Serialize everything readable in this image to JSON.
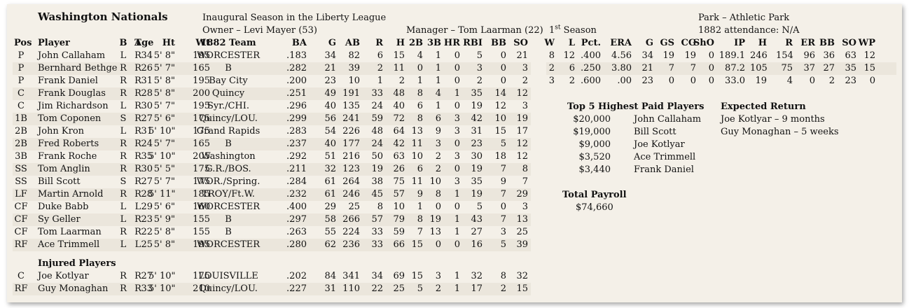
{
  "header": {
    "team": "Washington Nationals",
    "season": "Inaugural Season in the Liberty League",
    "owner": "Owner – Levi Mayer (53)",
    "manager": "Manager – Tom Laarman (22)",
    "manager_season_num": "1",
    "manager_season_sup": "st",
    "manager_season_rest": " Season",
    "park": "Park – Athletic Park",
    "attendance": "1882 attendance:  N/A"
  },
  "batting_columns": [
    "Pos",
    "Player",
    "B",
    "T",
    "Age",
    "Ht",
    "Wt",
    "1882 Team",
    "BA",
    "G",
    "AB",
    "R",
    "H",
    "2B",
    "3B",
    "HR",
    "RBI",
    "BB",
    "SO"
  ],
  "roster": [
    [
      "P",
      "John Callaham",
      "L",
      "R",
      "34",
      "5' 8\"",
      "195",
      "WORCESTER",
      ".183",
      "34",
      "82",
      "6",
      "15",
      "4",
      "1",
      "0",
      "5",
      "0",
      "21"
    ],
    [
      "P",
      "Bernhard Bethge",
      "R",
      "R",
      "26",
      "5' 7\"",
      "165",
      "B",
      ".282",
      "21",
      "39",
      "2",
      "11",
      "0",
      "1",
      "0",
      "3",
      "0",
      "3"
    ],
    [
      "P",
      "Frank Daniel",
      "R",
      "R",
      "31",
      "5' 8\"",
      "195",
      "Bay City",
      ".200",
      "23",
      "10",
      "1",
      "2",
      "1",
      "1",
      "0",
      "2",
      "0",
      "2"
    ],
    [
      "C",
      "Frank Douglas",
      "R",
      "R",
      "28",
      "5' 8\"",
      "200",
      "Quincy",
      ".251",
      "49",
      "191",
      "33",
      "48",
      "8",
      "4",
      "1",
      "35",
      "14",
      "12"
    ],
    [
      "C",
      "Jim Richardson",
      "L",
      "R",
      "30",
      "5' 7\"",
      "195",
      "Syr./CHI.",
      ".296",
      "40",
      "135",
      "24",
      "40",
      "6",
      "1",
      "0",
      "19",
      "12",
      "3"
    ],
    [
      "1B",
      "Tom Coponen",
      "S",
      "R",
      "27",
      "5' 6\"",
      "175",
      "Quincy/LOU.",
      ".299",
      "56",
      "241",
      "59",
      "72",
      "8",
      "6",
      "3",
      "42",
      "10",
      "19"
    ],
    [
      "2B",
      "John Kron",
      "L",
      "R",
      "31",
      "5' 10\"",
      "175",
      "Grand Rapids",
      ".283",
      "54",
      "226",
      "48",
      "64",
      "13",
      "9",
      "3",
      "31",
      "15",
      "17"
    ],
    [
      "2B",
      "Fred Roberts",
      "R",
      "R",
      "24",
      "5' 7\"",
      "165",
      "B",
      ".237",
      "40",
      "177",
      "24",
      "42",
      "11",
      "3",
      "0",
      "23",
      "5",
      "12"
    ],
    [
      "3B",
      "Frank Roche",
      "R",
      "R",
      "35",
      "5' 10\"",
      "205",
      "Washington",
      ".292",
      "51",
      "216",
      "50",
      "63",
      "10",
      "2",
      "3",
      "30",
      "18",
      "12"
    ],
    [
      "SS",
      "Tom Anglin",
      "R",
      "R",
      "30",
      "5' 5\"",
      "175",
      "G.R./BOS.",
      ".211",
      "32",
      "123",
      "19",
      "26",
      "6",
      "2",
      "0",
      "19",
      "7",
      "8"
    ],
    [
      "SS",
      "Bill Scott",
      "S",
      "R",
      "27",
      "5' 7\"",
      "175",
      "WOR./Spring.",
      ".284",
      "61",
      "264",
      "38",
      "75",
      "11",
      "10",
      "3",
      "35",
      "9",
      "7"
    ],
    [
      "LF",
      "Martin Arnold",
      "R",
      "R",
      "28",
      "5' 11\"",
      "185",
      "TROY/Ft.W.",
      ".232",
      "61",
      "246",
      "45",
      "57",
      "9",
      "8",
      "1",
      "19",
      "7",
      "29"
    ],
    [
      "CF",
      "Duke Babb",
      "L",
      "L",
      "29",
      "5' 6\"",
      "160",
      "WORCESTER",
      ".400",
      "29",
      "25",
      "8",
      "10",
      "1",
      "0",
      "0",
      "5",
      "0",
      "3"
    ],
    [
      "CF",
      "Sy Geller",
      "L",
      "R",
      "23",
      "5' 9\"",
      "155",
      "B",
      ".297",
      "58",
      "266",
      "57",
      "79",
      "8",
      "19",
      "1",
      "43",
      "7",
      "13"
    ],
    [
      "CF",
      "Tom Laarman",
      "R",
      "R",
      "22",
      "5' 8\"",
      "155",
      "B",
      ".263",
      "55",
      "224",
      "33",
      "59",
      "7",
      "13",
      "1",
      "27",
      "3",
      "25"
    ],
    [
      "RF",
      "Ace Trimmell",
      "L",
      "L",
      "25",
      "5' 8\"",
      "195",
      "WORCESTER",
      ".280",
      "62",
      "236",
      "33",
      "66",
      "15",
      "0",
      "0",
      "16",
      "5",
      "39"
    ]
  ],
  "injured_title": "Injured Players",
  "injured": [
    [
      "C",
      "Joe Kotlyar",
      "R",
      "R",
      "27",
      "5' 10\"",
      "175",
      "LOUISVILLE",
      ".202",
      "84",
      "341",
      "34",
      "69",
      "15",
      "3",
      "1",
      "32",
      "8",
      "32"
    ],
    [
      "RF",
      "Guy Monaghan",
      "R",
      "R",
      "33",
      "5' 10\"",
      "210",
      "Quincy/LOU.",
      ".227",
      "31",
      "110",
      "22",
      "25",
      "5",
      "2",
      "1",
      "17",
      "2",
      "15"
    ]
  ],
  "pitching_columns": [
    "W",
    "L",
    "Pct.",
    "ERA",
    "G",
    "GS",
    "CG",
    "ShO",
    "IP",
    "H",
    "R",
    "ER",
    "BB",
    "SO",
    "WP"
  ],
  "pitching": [
    [
      "8",
      "12",
      ".400",
      "4.56",
      "34",
      "19",
      "19",
      "0",
      "189.1",
      "246",
      "154",
      "96",
      "36",
      "63",
      "12"
    ],
    [
      "2",
      "6",
      ".250",
      "3.80",
      "21",
      "7",
      "7",
      "0",
      "87.2",
      "105",
      "75",
      "37",
      "27",
      "35",
      "15"
    ],
    [
      "3",
      "2",
      ".600",
      ".00",
      "23",
      "0",
      "0",
      "0",
      "33.0",
      "19",
      "4",
      "0",
      "2",
      "23",
      "0"
    ]
  ],
  "top_paid_title": "Top 5 Highest Paid Players",
  "top_paid": [
    [
      "$20,000",
      "John Callaham"
    ],
    [
      "$19,000",
      "Bill Scott"
    ],
    [
      "$9,000",
      "Joe Kotlyar"
    ],
    [
      "$3,520",
      "Ace Trimmell"
    ],
    [
      "$3,440",
      "Frank Daniel"
    ]
  ],
  "expected_return_title": "Expected Return",
  "expected_return": [
    "Joe Kotlyar – 9 months",
    "Guy Monaghan – 5 weeks"
  ],
  "payroll_title": "Total Payroll",
  "payroll": "$74,660"
}
